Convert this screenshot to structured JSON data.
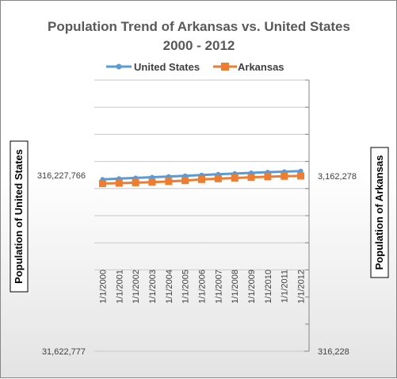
{
  "chart_data": {
    "type": "line",
    "title": "Population Trend of Arkansas vs. United States",
    "subtitle": "2000 - 2012",
    "categories": [
      "1/1/2000",
      "1/1/2001",
      "1/1/2002",
      "1/1/2003",
      "1/1/2004",
      "1/1/2005",
      "1/1/2006",
      "1/1/2007",
      "1/1/2008",
      "1/1/2009",
      "1/1/2010",
      "1/1/2011",
      "1/1/2012"
    ],
    "series": [
      {
        "name": "United States",
        "axis": "left",
        "color": "#5b9bd5",
        "marker": "circle",
        "values": [
          282162411,
          284968955,
          287625193,
          290107933,
          292805298,
          295516599,
          298379912,
          301231207,
          304093966,
          306771529,
          309349689,
          311591917,
          313914040
        ]
      },
      {
        "name": "Arkansas",
        "axis": "right",
        "color": "#ed7d31",
        "marker": "square",
        "values": [
          2678588,
          2691571,
          2705927,
          2724816,
          2749686,
          2781097,
          2821761,
          2848650,
          2874554,
          2896843,
          2921978,
          2938506,
          2949131
        ]
      }
    ],
    "y_left": {
      "label": "Population of United States",
      "scale": "log",
      "ylim": [
        31622777,
        1000000000
      ],
      "tick_labels": [
        {
          "value": 316227766,
          "text": "316,227,766"
        },
        {
          "value": 31622777,
          "text": "31,622,777"
        }
      ]
    },
    "y_right": {
      "label": "Population of Arkansas",
      "scale": "log",
      "ylim": [
        316228,
        10000000
      ],
      "tick_labels": [
        {
          "value": 3162278,
          "text": "3,162,278"
        },
        {
          "value": 316228,
          "text": "316,228"
        }
      ]
    },
    "grid": true,
    "legend": "top"
  }
}
